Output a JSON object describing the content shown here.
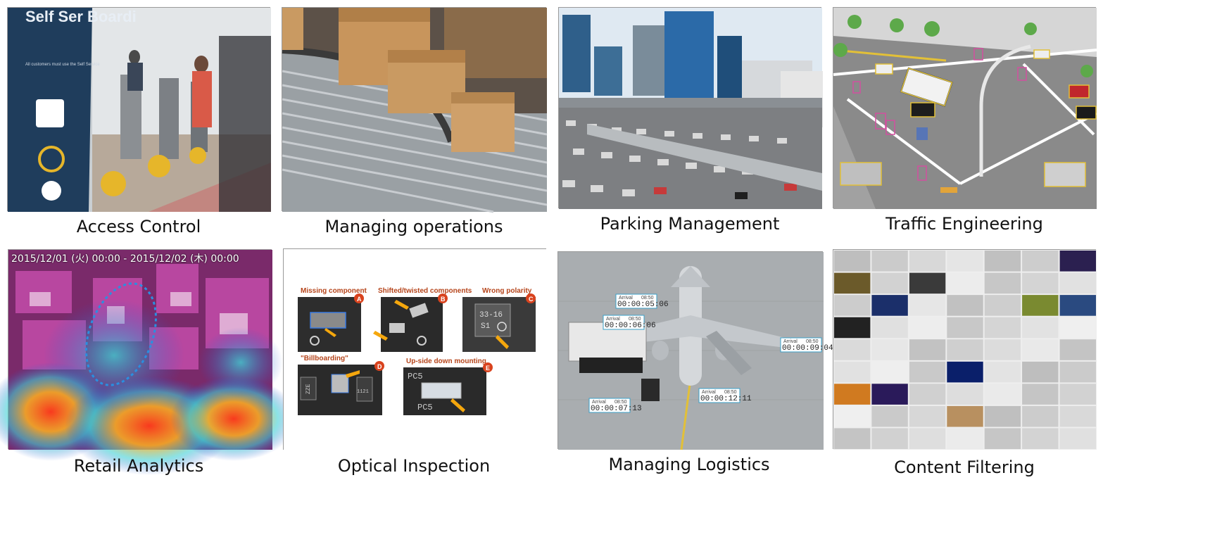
{
  "tiles": [
    {
      "caption": "Access Control",
      "sign_text": "Self Ser Boardi",
      "sign_sub": "All customers must use the Self Service"
    },
    {
      "caption": "Managing operations"
    },
    {
      "caption": "Parking Management"
    },
    {
      "caption": "Traffic Engineering"
    },
    {
      "caption": "Retail Analytics",
      "timestamp": "2015/12/01 (火) 00:00 - 2015/12/02 (木) 00:00"
    },
    {
      "caption": "Optical Inspection",
      "defects": [
        {
          "title": "Missing component",
          "badge": "A"
        },
        {
          "title": "Shifted/twisted components",
          "badge": "B"
        },
        {
          "title": "Wrong polarity",
          "badge": "C",
          "chip_text_1": "33-16",
          "chip_text_2": "S1"
        },
        {
          "title": "\"Billboarding\"",
          "badge": "D",
          "chip_text_1": "ZZE",
          "chip_text_2": "1121"
        },
        {
          "title": "Up-side down mounting",
          "badge": "E",
          "chip_text_1": "PC5",
          "chip_text_2": "PC5"
        }
      ]
    },
    {
      "caption": "Managing Logistics",
      "tags": [
        {
          "label": "Arrival",
          "code": "08:50",
          "time": "00:00:05:06"
        },
        {
          "label": "Arrival",
          "code": "08:50",
          "time": "00:00:06:06"
        },
        {
          "label": "Arrival",
          "code": "08:50",
          "time": "00:00:09:04"
        },
        {
          "label": "Arrival",
          "code": "08:50",
          "time": "00:00:07:13"
        },
        {
          "label": "Arrival",
          "code": "08:50",
          "time": "00:00:12:11"
        }
      ]
    },
    {
      "caption": "Content Filtering"
    }
  ],
  "colors": {
    "caption": "#111111",
    "tile_border": "#9a9a9a",
    "defect_title": "#b5441a",
    "badge": "#d9431e",
    "arrow": "#f5a70d"
  }
}
